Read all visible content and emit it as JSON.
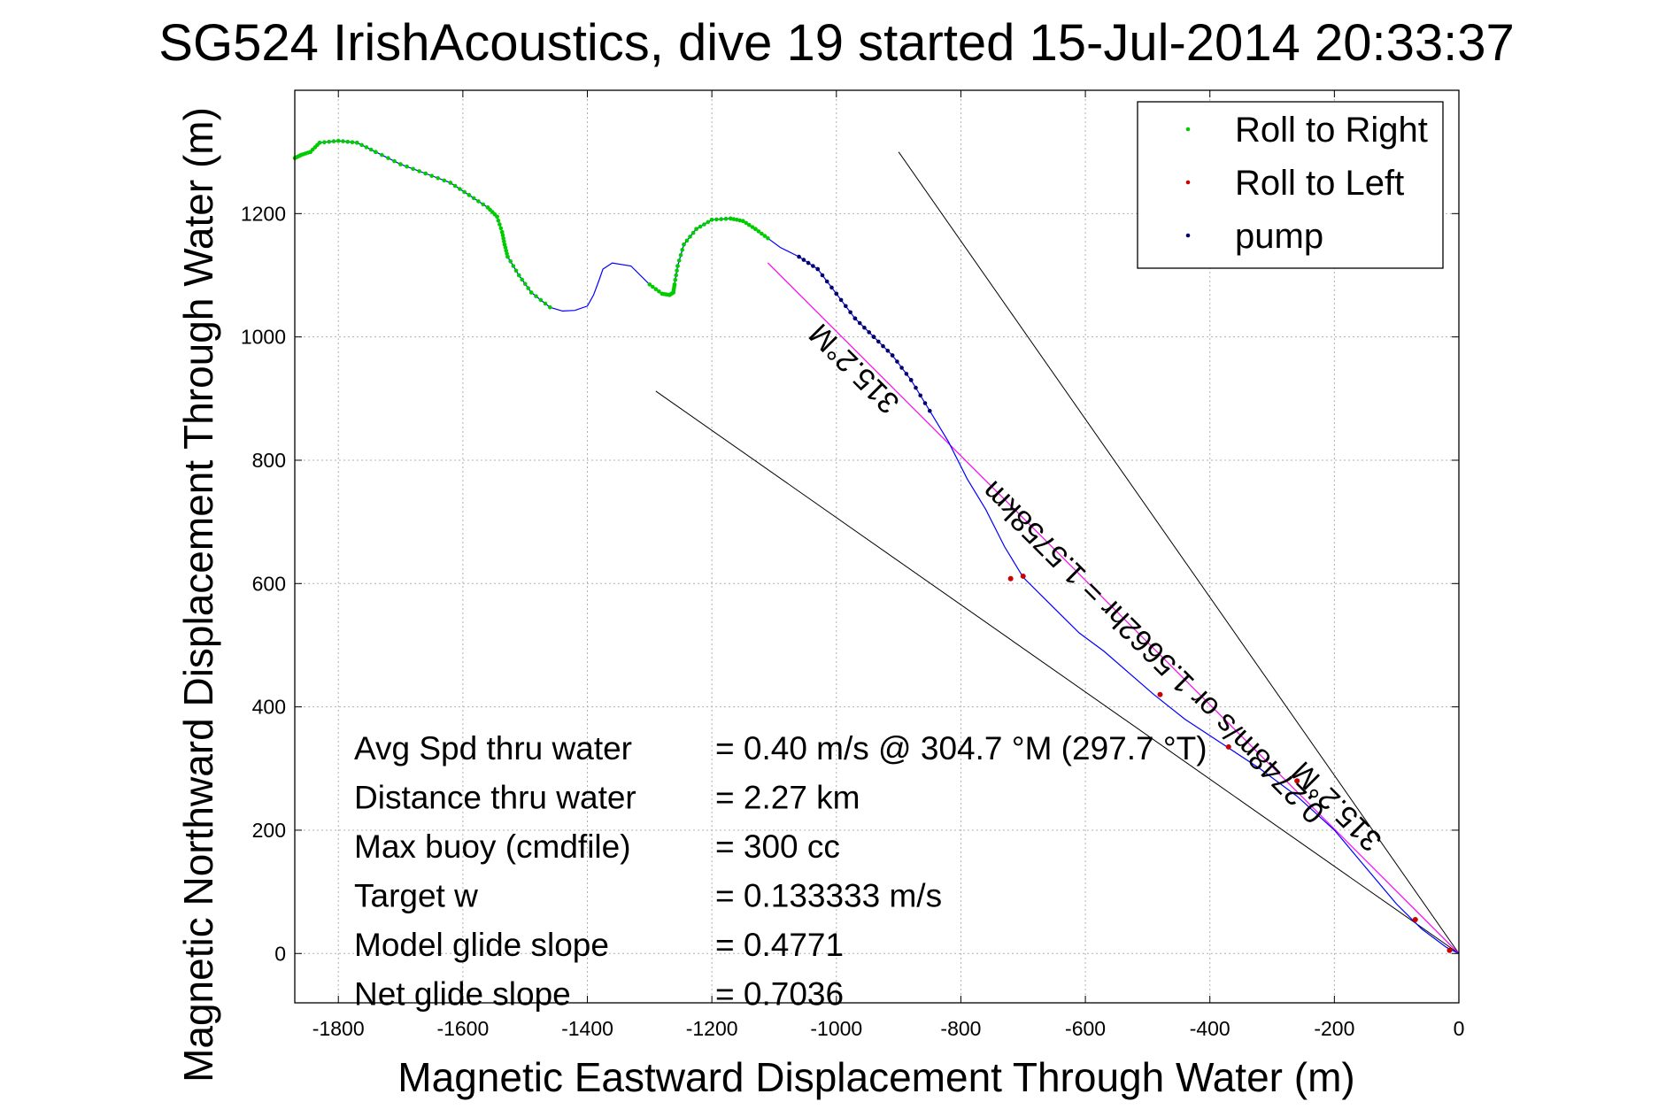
{
  "chart_data": {
    "type": "scatter",
    "title": "SG524 IrishAcoustics, dive 19 started 15-Jul-2014 20:33:37",
    "xlabel": "Magnetic Eastward Displacement Through Water (m)",
    "ylabel": "Magnetic Northward Displacement Through Water (m)",
    "xlim": [
      -1870,
      0
    ],
    "ylim": [
      -80,
      1400
    ],
    "xticks": [
      -1800,
      -1600,
      -1400,
      -1200,
      -1000,
      -800,
      -600,
      -400,
      -200,
      0
    ],
    "yticks": [
      0,
      200,
      400,
      600,
      800,
      1000,
      1200
    ],
    "grid": true,
    "legend_position": "top-right",
    "legend": [
      {
        "label": "Roll to Right",
        "color": "#00cc00"
      },
      {
        "label": "Roll to Left",
        "color": "#cc0000"
      },
      {
        "label": "pump",
        "color": "#000066"
      }
    ],
    "colors": {
      "track": "#0000ff",
      "roll_right": "#00cc00",
      "roll_left": "#cc0000",
      "pump": "#000066",
      "bearing_line": "#ff00ff",
      "cone": "#000000"
    },
    "track": {
      "x": [
        0,
        -20,
        -60,
        -100,
        -150,
        -200,
        -260,
        -320,
        -380,
        -440,
        -490,
        -530,
        -570,
        -610,
        -650,
        -700,
        -730,
        -760,
        -790,
        -820,
        -850,
        -880,
        -910,
        -940,
        -970,
        -1000,
        -1030,
        -1060,
        -1090,
        -1110,
        -1130,
        -1150,
        -1170,
        -1200,
        -1225,
        -1245,
        -1255,
        -1260,
        -1262,
        -1268,
        -1280,
        -1300,
        -1330,
        -1360,
        -1375,
        -1382,
        -1390,
        -1400,
        -1420,
        -1440,
        -1460,
        -1490,
        -1510,
        -1528,
        -1533,
        -1537,
        -1545,
        -1560,
        -1590,
        -1620,
        -1660,
        -1700,
        -1740,
        -1770,
        -1800,
        -1830,
        -1845,
        -1860,
        -1870
      ],
      "y": [
        0,
        10,
        40,
        80,
        140,
        200,
        255,
        300,
        340,
        380,
        420,
        455,
        490,
        520,
        560,
        610,
        660,
        720,
        770,
        830,
        880,
        930,
        970,
        1000,
        1030,
        1070,
        1110,
        1130,
        1145,
        1160,
        1175,
        1188,
        1192,
        1190,
        1175,
        1150,
        1115,
        1085,
        1072,
        1068,
        1070,
        1085,
        1115,
        1120,
        1110,
        1090,
        1068,
        1050,
        1043,
        1042,
        1048,
        1072,
        1100,
        1130,
        1150,
        1170,
        1195,
        1210,
        1230,
        1250,
        1265,
        1280,
        1300,
        1315,
        1318,
        1315,
        1300,
        1295,
        1290
      ]
    },
    "bearing_line": {
      "x": [
        0,
        -1110
      ],
      "y": [
        0,
        1120
      ]
    },
    "cone_lines": [
      {
        "x": [
          0,
          -900
        ],
        "y": [
          0,
          1300
        ]
      },
      {
        "x": [
          0,
          -1290
        ],
        "y": [
          0,
          912
        ]
      }
    ],
    "pump_range_index": [
      20,
      27
    ],
    "roll_left_points": {
      "x": [
        -15,
        -70,
        -260,
        -370,
        -480,
        -700,
        -720
      ],
      "y": [
        5,
        55,
        280,
        335,
        420,
        612,
        608
      ]
    },
    "rotated_labels": [
      {
        "text": "315.2°M",
        "x": -960,
        "y": 960,
        "angle": 225
      },
      {
        "text": "0.2748m/s or 1.5662hr = 1.5758km",
        "x": -480,
        "y": 500,
        "angle": 225
      },
      {
        "text": "315.2°M",
        "x": -185,
        "y": 250,
        "angle": 225
      }
    ],
    "stats": [
      {
        "label": "Avg Spd thru water",
        "value": "=  0.40 m/s @ 304.7 °M (297.7 °T)"
      },
      {
        "label": "Distance thru water",
        "value": "=  2.27 km"
      },
      {
        "label": "Max buoy (cmdfile)",
        "value": "= 300 cc"
      },
      {
        "label": "Target w",
        "value": "= 0.133333 m/s"
      },
      {
        "label": "Model glide slope",
        "value": "= 0.4771"
      },
      {
        "label": "Net glide slope",
        "value": "= 0.7036"
      }
    ]
  }
}
